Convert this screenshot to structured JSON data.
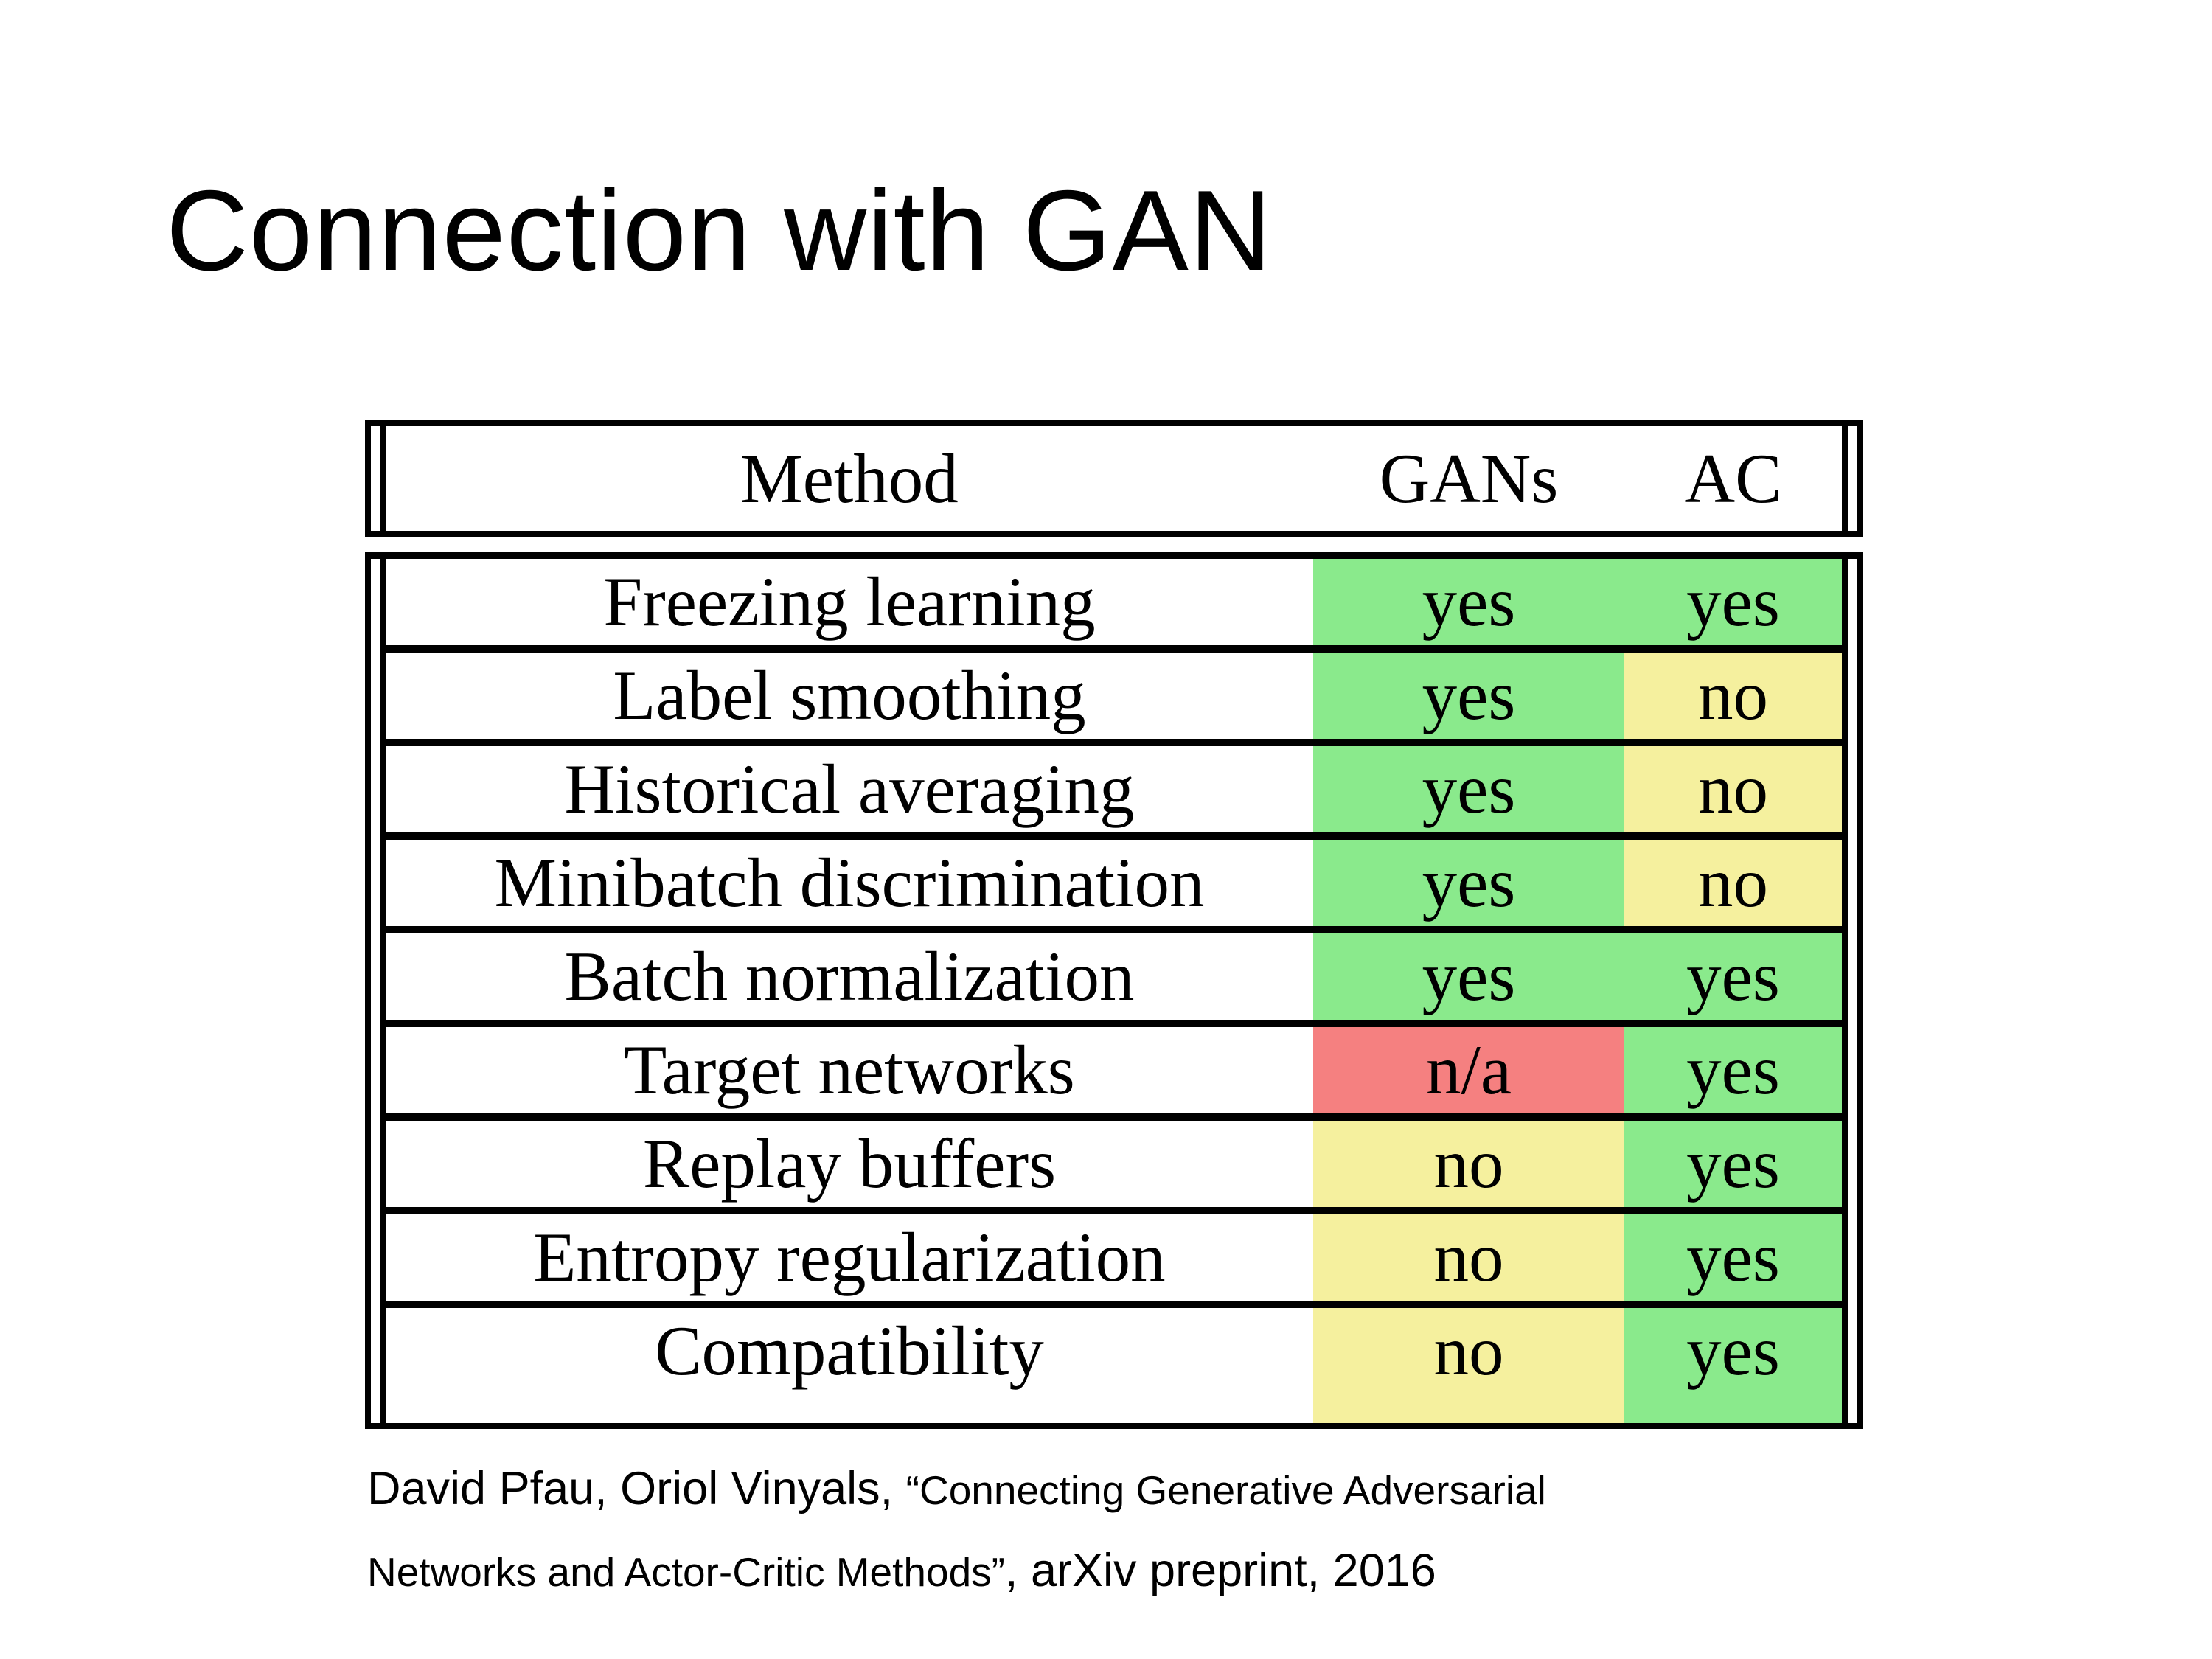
{
  "title": "Connection with GAN",
  "table": {
    "header": {
      "method": "Method",
      "gans": "GANs",
      "ac": "AC"
    },
    "rows": [
      {
        "method": "Freezing learning",
        "gans": "yes",
        "gans_color": "green",
        "ac": "yes",
        "ac_color": "green"
      },
      {
        "method": "Label smoothing",
        "gans": "yes",
        "gans_color": "green",
        "ac": "no",
        "ac_color": "yellow"
      },
      {
        "method": "Historical averaging",
        "gans": "yes",
        "gans_color": "green",
        "ac": "no",
        "ac_color": "yellow"
      },
      {
        "method": "Minibatch discrimination",
        "gans": "yes",
        "gans_color": "green",
        "ac": "no",
        "ac_color": "yellow"
      },
      {
        "method": "Batch normalization",
        "gans": "yes",
        "gans_color": "green",
        "ac": "yes",
        "ac_color": "green"
      },
      {
        "method": "Target networks",
        "gans": "n/a",
        "gans_color": "red",
        "ac": "yes",
        "ac_color": "green"
      },
      {
        "method": "Replay buffers",
        "gans": "no",
        "gans_color": "yellow",
        "ac": "yes",
        "ac_color": "green"
      },
      {
        "method": "Entropy regularization",
        "gans": "no",
        "gans_color": "yellow",
        "ac": "yes",
        "ac_color": "green"
      },
      {
        "method": "Compatibility",
        "gans": "no",
        "gans_color": "yellow",
        "ac": "yes",
        "ac_color": "green"
      }
    ]
  },
  "colors": {
    "green": "#8AEA8C",
    "yellow": "#F5F09E",
    "red": "#F58080",
    "border": "#000000"
  },
  "citation": {
    "part1": "David Pfau, Oriol Vinyals, ",
    "part2": "“Connecting Generative Adversarial",
    "part3": "Networks and Actor-Critic Methods”",
    "part4": ", arXiv preprint, 2016"
  }
}
